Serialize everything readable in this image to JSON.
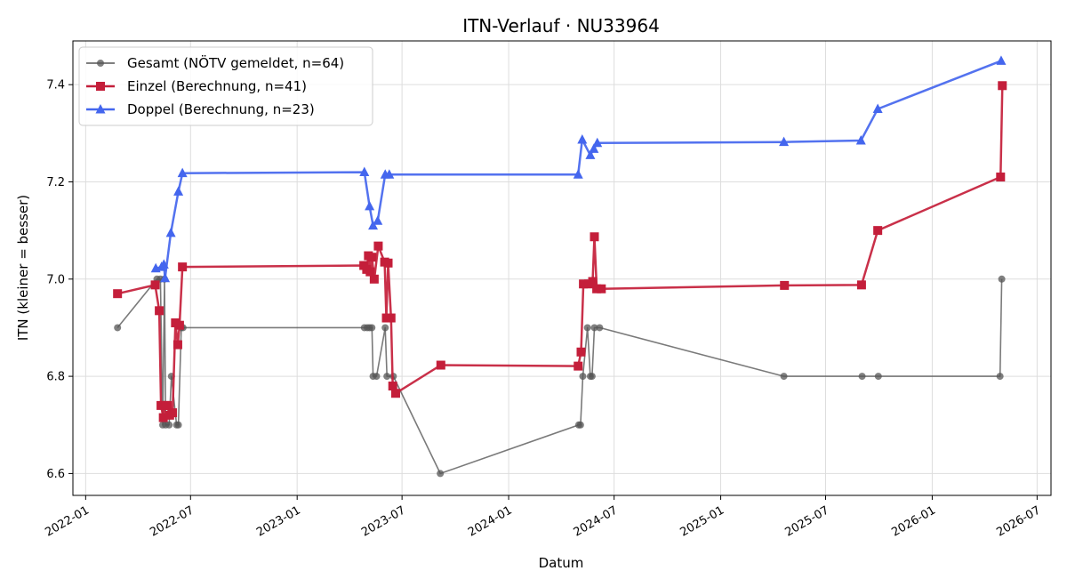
{
  "chart_data": {
    "type": "line",
    "title": "ITN-Verlauf · NU33964",
    "xlabel": "Datum",
    "ylabel": "ITN  (kleiner = besser)",
    "x_type": "date",
    "xlim": [
      "2021-12-10",
      "2026-07-25"
    ],
    "ylim": [
      6.555,
      7.49
    ],
    "x_ticks": [
      "2022-01-01",
      "2022-07-01",
      "2023-01-01",
      "2023-07-01",
      "2024-01-01",
      "2024-07-01",
      "2025-01-01",
      "2025-07-01",
      "2026-01-01",
      "2026-07-01"
    ],
    "x_tick_labels": [
      "2022-01",
      "2022-07",
      "2023-01",
      "2023-07",
      "2024-01",
      "2024-07",
      "2025-01",
      "2025-07",
      "2026-01",
      "2026-07"
    ],
    "y_ticks": [
      6.6,
      6.8,
      7.0,
      7.2,
      7.4
    ],
    "y_tick_labels": [
      "6.6",
      "6.8",
      "7.0",
      "7.2",
      "7.4"
    ],
    "grid": true,
    "legend_position": "top-left",
    "series": [
      {
        "name": "Gesamt (NÖTV gemeldet, n=64)",
        "color": "#555555",
        "marker": "circle",
        "points": [
          [
            "2022-02-25",
            6.9
          ],
          [
            "2022-05-04",
            7.0
          ],
          [
            "2022-05-10",
            7.0
          ],
          [
            "2022-05-14",
            6.7
          ],
          [
            "2022-05-17",
            7.0
          ],
          [
            "2022-05-19",
            6.7
          ],
          [
            "2022-05-25",
            6.7
          ],
          [
            "2022-05-29",
            6.8
          ],
          [
            "2022-06-07",
            6.7
          ],
          [
            "2022-06-10",
            6.7
          ],
          [
            "2022-06-15",
            6.9
          ],
          [
            "2022-06-18",
            6.9
          ],
          [
            "2023-04-27",
            6.9
          ],
          [
            "2023-05-02",
            6.9
          ],
          [
            "2023-05-06",
            6.9
          ],
          [
            "2023-05-10",
            6.9
          ],
          [
            "2023-05-12",
            6.8
          ],
          [
            "2023-05-18",
            6.8
          ],
          [
            "2023-06-02",
            6.9
          ],
          [
            "2023-06-05",
            6.8
          ],
          [
            "2023-06-16",
            6.8
          ],
          [
            "2023-09-05",
            6.6
          ],
          [
            "2024-05-01",
            6.7
          ],
          [
            "2024-05-04",
            6.7
          ],
          [
            "2024-05-08",
            6.8
          ],
          [
            "2024-05-16",
            6.9
          ],
          [
            "2024-05-21",
            6.8
          ],
          [
            "2024-05-24",
            6.8
          ],
          [
            "2024-05-28",
            6.9
          ],
          [
            "2024-06-06",
            6.9
          ],
          [
            "2025-04-20",
            6.8
          ],
          [
            "2025-09-02",
            6.8
          ],
          [
            "2025-09-30",
            6.8
          ],
          [
            "2026-04-28",
            6.8
          ],
          [
            "2026-05-01",
            7.0
          ]
        ]
      },
      {
        "name": "Einzel (Berechnung, n=41)",
        "color": "#c41e3a",
        "marker": "square",
        "points": [
          [
            "2022-02-25",
            6.97
          ],
          [
            "2022-05-01",
            6.988
          ],
          [
            "2022-05-08",
            6.935
          ],
          [
            "2022-05-11",
            6.74
          ],
          [
            "2022-05-15",
            6.715
          ],
          [
            "2022-05-18",
            6.74
          ],
          [
            "2022-05-22",
            6.74
          ],
          [
            "2022-05-26",
            6.72
          ],
          [
            "2022-05-31",
            6.725
          ],
          [
            "2022-06-05",
            6.91
          ],
          [
            "2022-06-09",
            6.865
          ],
          [
            "2022-06-12",
            6.905
          ],
          [
            "2022-06-17",
            7.025
          ],
          [
            "2023-04-26",
            7.028
          ],
          [
            "2023-05-01",
            7.02
          ],
          [
            "2023-05-04",
            7.048
          ],
          [
            "2023-05-07",
            7.015
          ],
          [
            "2023-05-10",
            7.045
          ],
          [
            "2023-05-14",
            7.0
          ],
          [
            "2023-05-21",
            7.068
          ],
          [
            "2023-06-01",
            7.035
          ],
          [
            "2023-06-04",
            6.92
          ],
          [
            "2023-06-07",
            7.033
          ],
          [
            "2023-06-12",
            6.92
          ],
          [
            "2023-06-15",
            6.78
          ],
          [
            "2023-06-20",
            6.765
          ],
          [
            "2023-09-06",
            6.823
          ],
          [
            "2024-04-30",
            6.821
          ],
          [
            "2024-05-05",
            6.85
          ],
          [
            "2024-05-09",
            6.99
          ],
          [
            "2024-05-18",
            6.99
          ],
          [
            "2024-05-25",
            6.995
          ],
          [
            "2024-05-28",
            7.087
          ],
          [
            "2024-06-01",
            6.98
          ],
          [
            "2024-06-09",
            6.98
          ],
          [
            "2025-04-21",
            6.987
          ],
          [
            "2025-09-01",
            6.988
          ],
          [
            "2025-09-29",
            7.1
          ],
          [
            "2026-04-29",
            7.21
          ],
          [
            "2026-05-02",
            7.398
          ]
        ]
      },
      {
        "name": "Doppel (Berechnung, n=23)",
        "color": "#4466ee",
        "marker": "triangle",
        "points": [
          [
            "2022-05-02",
            7.022
          ],
          [
            "2022-05-12",
            7.025
          ],
          [
            "2022-05-16",
            7.03
          ],
          [
            "2022-05-18",
            7.002
          ],
          [
            "2022-05-28",
            7.095
          ],
          [
            "2022-06-10",
            7.18
          ],
          [
            "2022-06-17",
            7.218
          ],
          [
            "2023-04-27",
            7.22
          ],
          [
            "2023-05-06",
            7.15
          ],
          [
            "2023-05-12",
            7.11
          ],
          [
            "2023-05-20",
            7.12
          ],
          [
            "2023-06-02",
            7.215
          ],
          [
            "2023-06-09",
            7.215
          ],
          [
            "2024-04-30",
            7.215
          ],
          [
            "2024-05-07",
            7.287
          ],
          [
            "2024-05-21",
            7.255
          ],
          [
            "2024-05-27",
            7.268
          ],
          [
            "2024-06-02",
            7.28
          ],
          [
            "2025-04-20",
            7.282
          ],
          [
            "2025-08-31",
            7.285
          ],
          [
            "2025-09-29",
            7.35
          ],
          [
            "2026-04-30",
            7.449
          ]
        ]
      }
    ]
  }
}
